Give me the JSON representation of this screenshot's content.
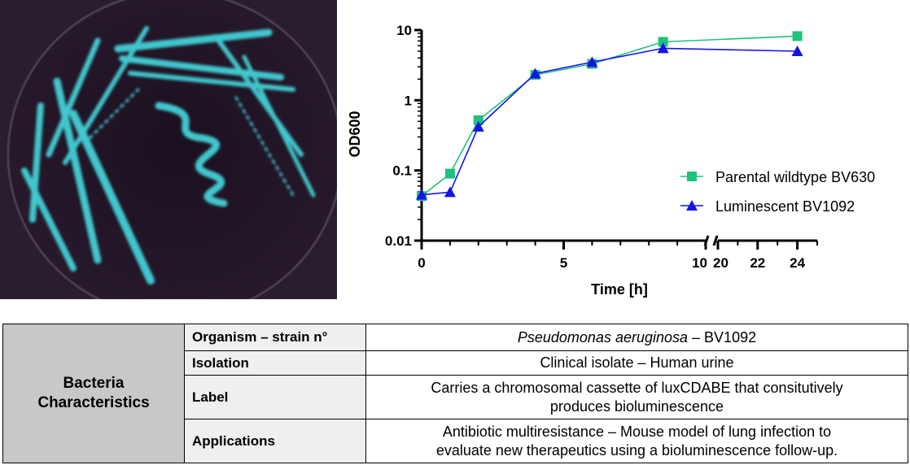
{
  "colors": {
    "plate_background": "#190f1e",
    "bacteria_glow": "#3fc6cc",
    "series_wildtype": "#1fc17c",
    "series_luminescent": "#1414e6",
    "table_header_bg": "#c8c8c8",
    "table_key_bg": "#efefef"
  },
  "photo": {
    "subject": "petri-dish-bioluminescent-bacteria"
  },
  "chart_data": {
    "type": "line",
    "y_scale": "log",
    "ylim": [
      0.01,
      10
    ],
    "ylabel": "OD600",
    "xlabel": "Time [h]",
    "x_axis_break": [
      10,
      20
    ],
    "x_segments": [
      [
        0,
        10
      ],
      [
        20,
        25
      ]
    ],
    "x_ticks": [
      0,
      5,
      10,
      20,
      22,
      24
    ],
    "x_tick_labels": [
      "0",
      "5",
      "10",
      "20",
      "22",
      "24"
    ],
    "y_ticks": [
      0.01,
      0.1,
      1,
      10
    ],
    "y_tick_labels": [
      "0.01",
      "0.1",
      "1",
      "10"
    ],
    "legend_position": "right",
    "series": [
      {
        "name": "Parental wildtype BV630",
        "marker": "square",
        "color": "#1fc17c",
        "x": [
          0,
          1,
          2,
          4,
          6,
          8.5,
          24
        ],
        "y": [
          0.043,
          0.09,
          0.52,
          2.3,
          3.3,
          6.8,
          8.2
        ]
      },
      {
        "name": "Luminescent BV1092",
        "marker": "triangle",
        "color": "#1414e6",
        "x": [
          0,
          1,
          2,
          4,
          6,
          8.5,
          24
        ],
        "y": [
          0.045,
          0.049,
          0.42,
          2.4,
          3.5,
          5.5,
          5.0
        ]
      }
    ]
  },
  "table": {
    "header": [
      "Bacteria",
      "Characteristics"
    ],
    "rows": [
      {
        "key": "Organism – strain n°",
        "value_italic": "Pseudomonas aeruginosa",
        "value": " – BV1092"
      },
      {
        "key": "Isolation",
        "value": "Clinical isolate – Human urine"
      },
      {
        "key": "Label",
        "value_lines": [
          "Carries a chromosomal cassette of luxCDABE that consitutively",
          "produces bioluminescence"
        ]
      },
      {
        "key": "Applications",
        "value_lines": [
          "Antibiotic multiresistance – Mouse model of lung infection to",
          "evaluate new therapeutics using a bioluminescence follow-up."
        ]
      }
    ]
  }
}
